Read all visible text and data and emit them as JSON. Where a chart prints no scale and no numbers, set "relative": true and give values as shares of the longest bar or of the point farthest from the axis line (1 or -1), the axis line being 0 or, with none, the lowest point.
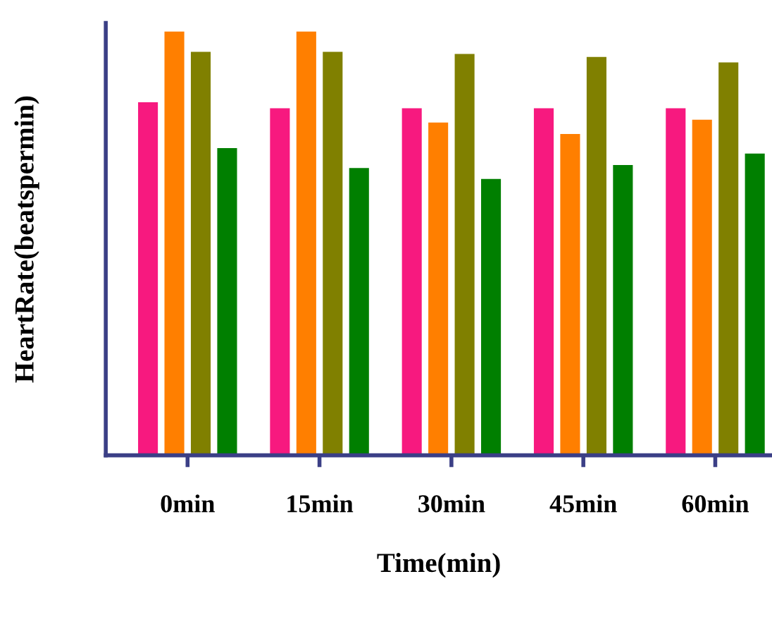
{
  "chart_data": {
    "type": "bar",
    "relative": true,
    "xlabel": "Time(min)",
    "ylabel": "HeartRate(beatspermin)",
    "categories": [
      "0min",
      "15min",
      "30min",
      "45min",
      "60min"
    ],
    "series": [
      {
        "color": "#f7197f",
        "values": [
          0.833,
          0.819,
          0.819,
          0.819,
          0.819
        ]
      },
      {
        "color": "#ff7f00",
        "values": [
          1,
          1,
          0.785,
          0.758,
          0.792
        ]
      },
      {
        "color": "#808000",
        "values": [
          0.952,
          0.952,
          0.947,
          0.94,
          0.927
        ]
      },
      {
        "color": "#007f00",
        "values": [
          0.725,
          0.678,
          0.652,
          0.685,
          0.712
        ]
      }
    ],
    "grid": false
  }
}
